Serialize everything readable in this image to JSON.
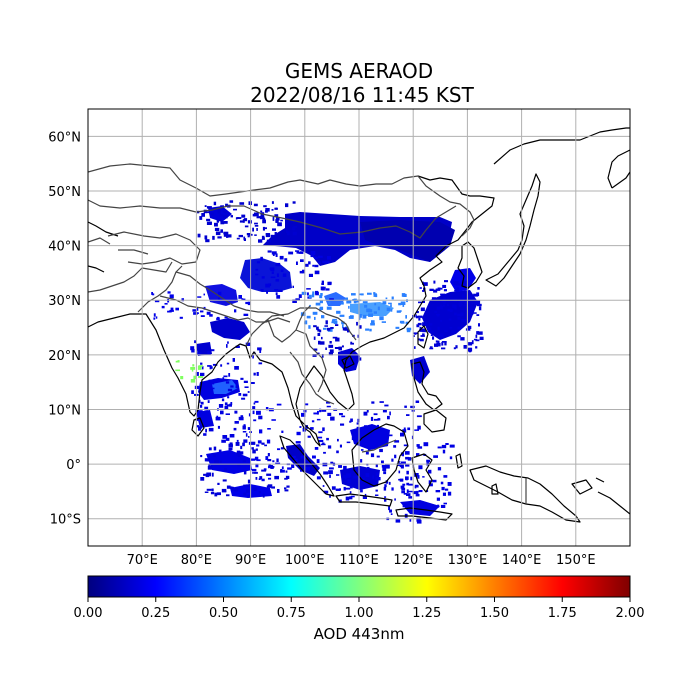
{
  "title_line1": "GEMS AERAOD",
  "title_line2": "2022/08/16 11:45 KST",
  "map": {
    "lon_range": [
      60,
      160
    ],
    "lat_range": [
      -15,
      65
    ],
    "lon_ticks": [
      {
        "value": 70,
        "label": "70°E"
      },
      {
        "value": 80,
        "label": "80°E"
      },
      {
        "value": 90,
        "label": "90°E"
      },
      {
        "value": 100,
        "label": "100°E"
      },
      {
        "value": 110,
        "label": "110°E"
      },
      {
        "value": 120,
        "label": "120°E"
      },
      {
        "value": 130,
        "label": "130°E"
      },
      {
        "value": 140,
        "label": "140°E"
      },
      {
        "value": 150,
        "label": "150°E"
      }
    ],
    "lat_ticks": [
      {
        "value": 60,
        "label": "60°N"
      },
      {
        "value": 50,
        "label": "50°N"
      },
      {
        "value": 40,
        "label": "40°N"
      },
      {
        "value": 30,
        "label": "30°N"
      },
      {
        "value": 20,
        "label": "20°N"
      },
      {
        "value": 10,
        "label": "10°N"
      },
      {
        "value": 0,
        "label": "0°"
      },
      {
        "value": -10,
        "label": "10°S"
      }
    ],
    "grid": true
  },
  "colorbar": {
    "label": "AOD 443nm",
    "colormap": "jet",
    "range": [
      0,
      2
    ],
    "ticks": [
      {
        "value": 0.0,
        "label": "0.00"
      },
      {
        "value": 0.25,
        "label": "0.25"
      },
      {
        "value": 0.5,
        "label": "0.50"
      },
      {
        "value": 0.75,
        "label": "0.75"
      },
      {
        "value": 1.0,
        "label": "1.00"
      },
      {
        "value": 1.25,
        "label": "1.25"
      },
      {
        "value": 1.5,
        "label": "1.50"
      },
      {
        "value": 1.75,
        "label": "1.75"
      },
      {
        "value": 2.0,
        "label": "2.00"
      }
    ],
    "stops": [
      "#00007f",
      "#0000ff",
      "#007fff",
      "#00ffff",
      "#7fff7f",
      "#ffff00",
      "#ff7f00",
      "#ff0000",
      "#7f0000"
    ]
  }
}
